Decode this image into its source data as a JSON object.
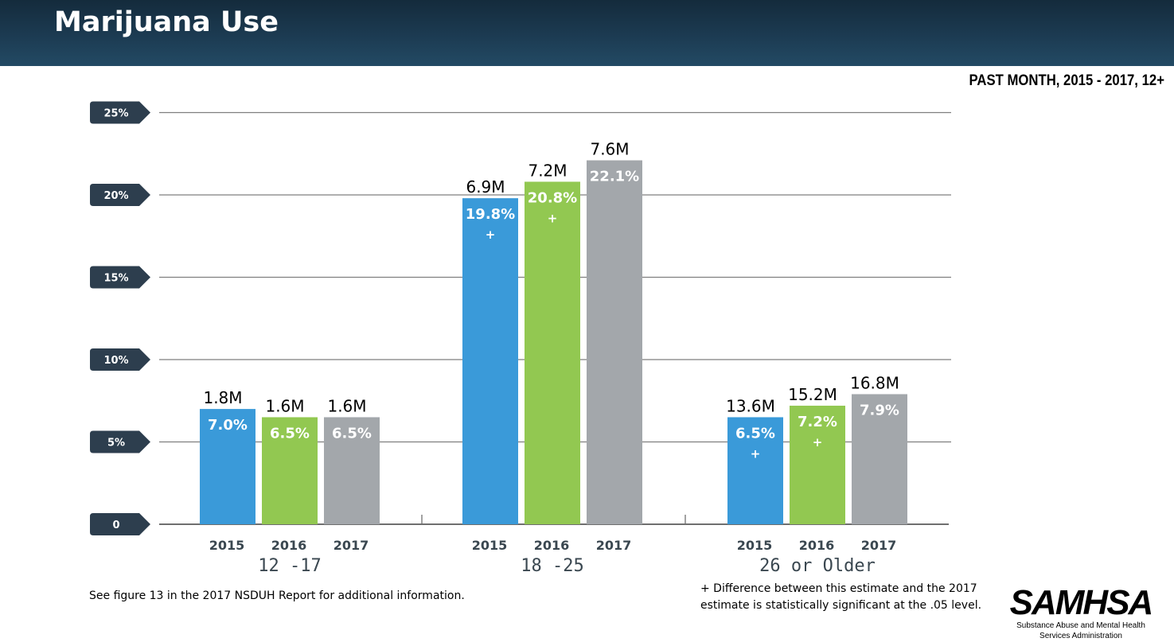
{
  "header": {
    "title": "Marijuana Use"
  },
  "subtitle": "PAST MONTH, 2015 - 2017, 12+",
  "footnote_left": "See figure 13 in the 2017 NSDUH Report for additional information.",
  "footnote_right": {
    "line1": "+ Difference between this estimate and the 2017",
    "line2": "estimate is statistically significant at the .05 level."
  },
  "logo": {
    "mark": "SAMHSA",
    "line1": "Substance Abuse and Mental Health",
    "line2": "Services Administration"
  },
  "colors": {
    "2015": "#3a9ad9",
    "2016": "#92c851",
    "2017": "#a3a7ab",
    "tick_badge": "#2d3e4e",
    "gridline": "#7f7f7f"
  },
  "chart_data": {
    "type": "bar",
    "ylim": [
      0,
      25
    ],
    "yticks": [
      {
        "value": 0,
        "label": "0"
      },
      {
        "value": 5,
        "label": "5%"
      },
      {
        "value": 10,
        "label": "10%"
      },
      {
        "value": 15,
        "label": "15%"
      },
      {
        "value": 20,
        "label": "20%"
      },
      {
        "value": 25,
        "label": "25%"
      }
    ],
    "grid": true,
    "groups": [
      {
        "label": "12 -17",
        "bars": [
          {
            "year": "2015",
            "value": 7.0,
            "label": "7.0%",
            "count": "1.8M",
            "significant": false
          },
          {
            "year": "2016",
            "value": 6.5,
            "label": "6.5%",
            "count": "1.6M",
            "significant": false
          },
          {
            "year": "2017",
            "value": 6.5,
            "label": "6.5%",
            "count": "1.6M",
            "significant": false
          }
        ]
      },
      {
        "label": "18 -25",
        "bars": [
          {
            "year": "2015",
            "value": 19.8,
            "label": "19.8%",
            "count": "6.9M",
            "significant": true
          },
          {
            "year": "2016",
            "value": 20.8,
            "label": "20.8%",
            "count": "7.2M",
            "significant": true
          },
          {
            "year": "2017",
            "value": 22.1,
            "label": "22.1%",
            "count": "7.6M",
            "significant": false
          }
        ]
      },
      {
        "label": "26 or Older",
        "bars": [
          {
            "year": "2015",
            "value": 6.5,
            "label": "6.5%",
            "count": "13.6M",
            "significant": true
          },
          {
            "year": "2016",
            "value": 7.2,
            "label": "7.2%",
            "count": "15.2M",
            "significant": true
          },
          {
            "year": "2017",
            "value": 7.9,
            "label": "7.9%",
            "count": "16.8M",
            "significant": false
          }
        ]
      }
    ],
    "significance_marker": "+"
  }
}
